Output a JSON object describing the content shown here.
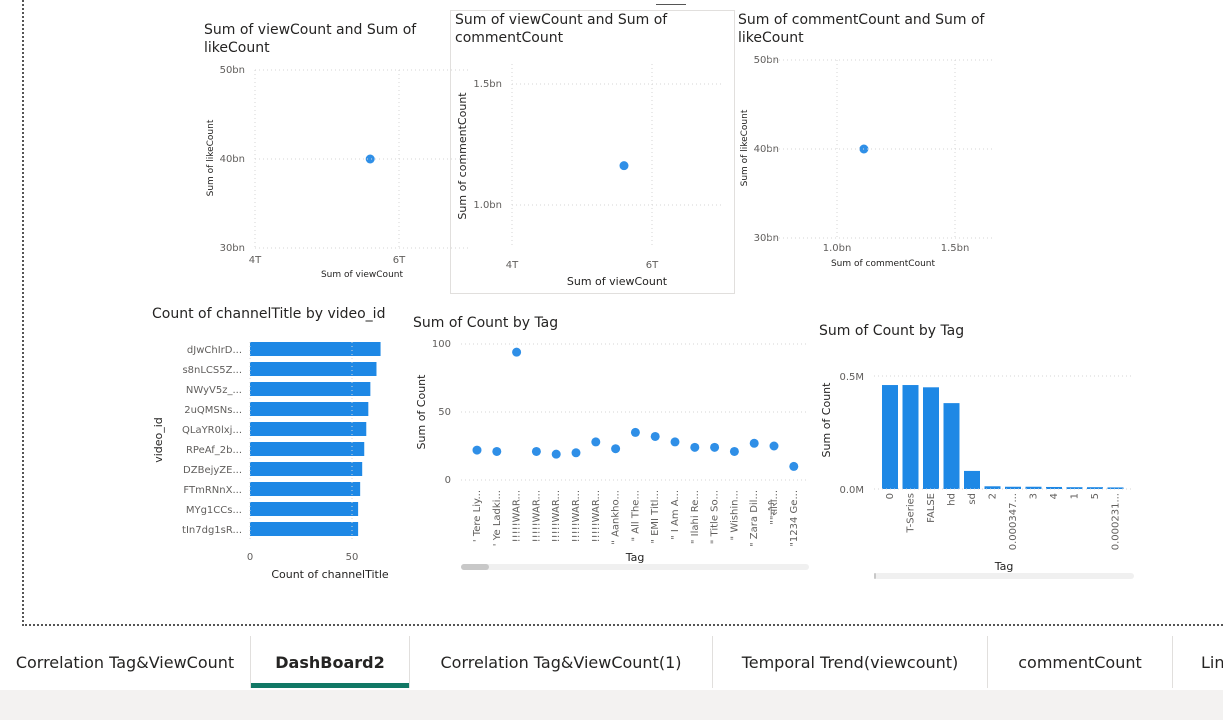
{
  "colors": {
    "accent": "#2f8fe7",
    "bar": "#1e88e5",
    "active_tab_underline": "#117865"
  },
  "charts": {
    "view_like": {
      "title": "Sum of viewCount and Sum of likeCount",
      "xlabel": "Sum of viewCount",
      "ylabel": "Sum of likeCount",
      "x_ticks": [
        "4T",
        "6T"
      ],
      "y_ticks": [
        "50bn",
        "40bn",
        "30bn"
      ]
    },
    "view_comment": {
      "title": "Sum of viewCount and Sum of commentCount",
      "xlabel": "Sum of viewCount",
      "ylabel": "Sum of commentCount",
      "x_ticks": [
        "4T",
        "6T"
      ],
      "y_ticks": [
        "1.5bn",
        "1.0bn"
      ]
    },
    "comment_like": {
      "title": "Sum of commentCount and Sum of likeCount",
      "xlabel": "Sum of commentCount",
      "ylabel": "Sum of likeCount",
      "x_ticks": [
        "1.0bn",
        "1.5bn"
      ],
      "y_ticks": [
        "50bn",
        "40bn",
        "30bn"
      ]
    },
    "channel_bar": {
      "title": "Count of channelTitle by video_id",
      "xlabel": "Count of channelTitle",
      "ylabel": "video_id",
      "x_ticks": [
        "0",
        "50"
      ]
    },
    "tag_scatter": {
      "title": "Sum of Count by Tag",
      "xlabel": "Tag",
      "ylabel": "Sum of Count",
      "y_ticks": [
        "100",
        "50",
        "0"
      ]
    },
    "tag_bar": {
      "title": "Sum of Count by Tag",
      "xlabel": "Tag",
      "ylabel": "Sum of Count",
      "y_ticks": [
        "0.5M",
        "0.0M"
      ]
    }
  },
  "chart_data": [
    {
      "type": "scatter",
      "title": "Sum of viewCount and Sum of likeCount",
      "xlabel": "Sum of viewCount",
      "ylabel": "Sum of likeCount",
      "xlim": [
        4,
        7
      ],
      "ylim": [
        30,
        50
      ],
      "x_unit": "T",
      "y_unit": "bn",
      "points": [
        {
          "x": 5.6,
          "y": 40
        }
      ]
    },
    {
      "type": "scatter",
      "title": "Sum of viewCount and Sum of commentCount",
      "xlabel": "Sum of viewCount",
      "ylabel": "Sum of commentCount",
      "xlim": [
        4,
        7
      ],
      "ylim": [
        0.8,
        1.7
      ],
      "x_unit": "T",
      "y_unit": "bn",
      "points": [
        {
          "x": 5.6,
          "y": 1.2
        }
      ]
    },
    {
      "type": "scatter",
      "title": "Sum of commentCount and Sum of likeCount",
      "xlabel": "Sum of commentCount",
      "ylabel": "Sum of likeCount",
      "xlim": [
        0.8,
        1.7
      ],
      "ylim": [
        30,
        50
      ],
      "x_unit": "bn",
      "y_unit": "bn",
      "points": [
        {
          "x": 1.2,
          "y": 40
        }
      ]
    },
    {
      "type": "bar",
      "orientation": "horizontal",
      "title": "Count of channelTitle by video_id",
      "xlabel": "Count of channelTitle",
      "ylabel": "video_id",
      "xlim": [
        0,
        65
      ],
      "categories": [
        "dJwChIrD...",
        "s8nLCS5Z...",
        "NWyV5z_...",
        "2uQMSNs...",
        "QLaYR0lxj...",
        "RPeAf_2b...",
        "DZBejyZE...",
        "FTmRNnX...",
        "MYg1CCs...",
        "tIn7dg1sR..."
      ],
      "values": [
        64,
        62,
        59,
        58,
        57,
        56,
        55,
        54,
        53,
        53
      ]
    },
    {
      "type": "scatter",
      "title": "Sum of Count by Tag",
      "xlabel": "Tag",
      "ylabel": "Sum of Count",
      "ylim": [
        0,
        100
      ],
      "categories": [
        "' Tere Liy...",
        "' Ye Ladki...",
        "!!!!!WAR...",
        "!!!!!WAR...",
        "!!!!!WAR...",
        "!!!!!WAR...",
        "!!!!!WAR...",
        "\" Aankho...",
        "\" All The...",
        "\" EMI Titl...",
        "\" I Am A...",
        "\" Ilahi Re...",
        "\" Title So...",
        "\" Wishin...",
        "\" Zara Dil...",
        "\"\"सौरी...",
        "\"1234 Ge..."
      ],
      "values": [
        22,
        21,
        94,
        21,
        19,
        20,
        28,
        23,
        35,
        32,
        28,
        24,
        24,
        21,
        27,
        25,
        10
      ]
    },
    {
      "type": "bar",
      "title": "Sum of Count by Tag",
      "xlabel": "Tag",
      "ylabel": "Sum of Count",
      "ylim": [
        0,
        0.55
      ],
      "y_unit": "M",
      "categories": [
        "0",
        "T-Series",
        "FALSE",
        "hd",
        "sd",
        "2",
        "0.000347...",
        "3",
        "4",
        "1",
        "5",
        "0.000231..."
      ],
      "values": [
        0.46,
        0.46,
        0.45,
        0.38,
        0.08,
        0.012,
        0.01,
        0.01,
        0.009,
        0.008,
        0.008,
        0.007
      ]
    }
  ],
  "tabs": [
    {
      "label": "Correlation Tag&ViewCount"
    },
    {
      "label": "DashBoard2"
    },
    {
      "label": "Correlation Tag&ViewCount(1)"
    },
    {
      "label": "Temporal Trend(viewcount)"
    },
    {
      "label": "commentCount"
    },
    {
      "label": "Lin"
    }
  ],
  "active_tab": 1
}
